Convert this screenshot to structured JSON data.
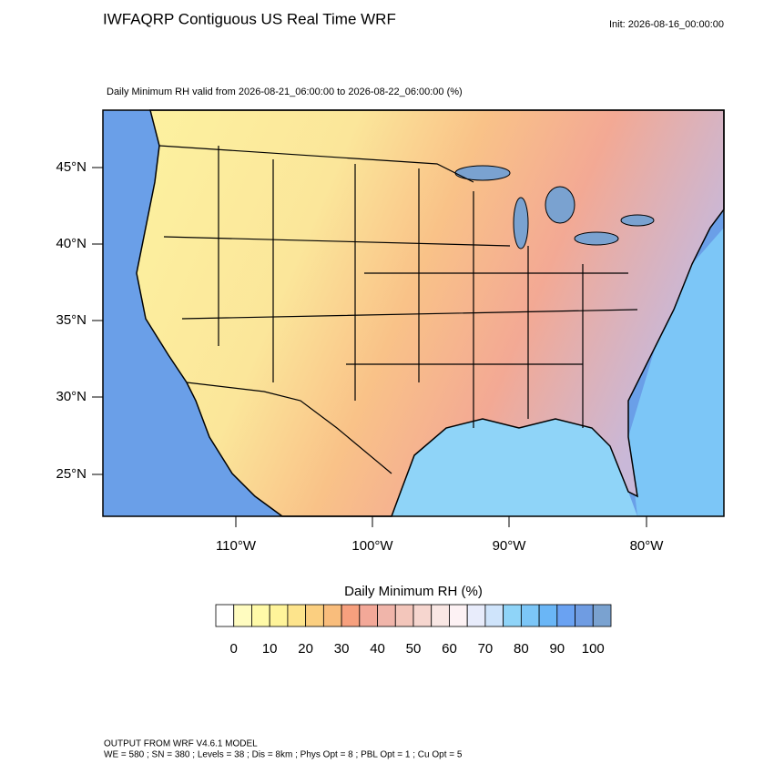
{
  "header": {
    "title": "IWFAQRP Contiguous US Real Time WRF",
    "init": "Init: 2026-08-16_00:00:00"
  },
  "map": {
    "subtitle": "Daily Minimum RH valid from 2026-08-21_06:00:00 to 2026-08-22_06:00:00   (%)",
    "lat_labels": [
      "45°N",
      "40°N",
      "35°N",
      "30°N",
      "25°N"
    ],
    "lon_labels": [
      "110°W",
      "100°W",
      "90°W",
      "80°W"
    ]
  },
  "colorbar": {
    "title": "Daily Minimum RH  (%)",
    "labels": [
      0,
      10,
      20,
      30,
      40,
      50,
      60,
      70,
      80,
      90,
      100
    ],
    "colors": [
      "#ffffff",
      "#fffcc0",
      "#fffaa8",
      "#fff49a",
      "#fde48c",
      "#fbcf80",
      "#f9bd7c",
      "#f7a07e",
      "#f3a898",
      "#f0b5aa",
      "#f3c6bb",
      "#f6d6cf",
      "#f9e7e4",
      "#fdf2f4",
      "#e8ecfb",
      "#cfe4fb",
      "#8fd4f8",
      "#7cc6f7",
      "#6ab6f6",
      "#6aa2f2",
      "#6f9ce2",
      "#7aa2d0"
    ]
  },
  "footer": {
    "line1": "OUTPUT FROM WRF V4.6.1 MODEL",
    "line2": "WE = 580 ; SN = 380 ; Levels = 38 ; Dis = 8km ; Phys Opt = 8 ; PBL Opt = 1 ; Cu Opt = 5"
  }
}
